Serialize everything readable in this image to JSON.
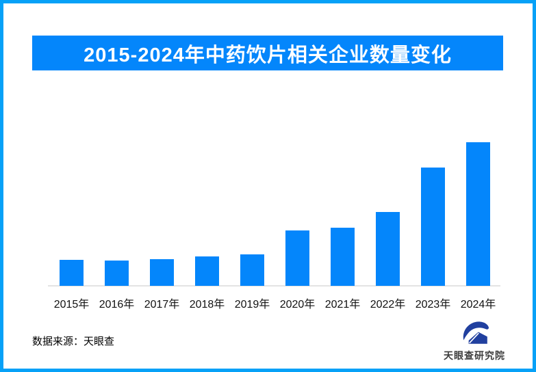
{
  "frame": {
    "border_color": "#07A1F7",
    "background_color": "#FFFFFF"
  },
  "header": {
    "title": "2015-2024年中药饮片相关企业数量变化",
    "banner_color": "#0486FB",
    "title_color": "#FFFFFF"
  },
  "chart_data": {
    "type": "bar",
    "title": "2015-2024年中药饮片相关企业数量变化",
    "categories": [
      "2015年",
      "2016年",
      "2017年",
      "2018年",
      "2019年",
      "2020年",
      "2021年",
      "2022年",
      "2023年",
      "2024年"
    ],
    "values": [
      38,
      37,
      39,
      43,
      46,
      81,
      85,
      108,
      173,
      210
    ],
    "xlabel": "",
    "ylabel": "",
    "ylim": [
      0,
      240
    ],
    "grid": false,
    "legend": false,
    "data_labels": false,
    "bar_color": "#0486FB",
    "axis_line_color": "#E3E3E3",
    "tick_label_color": "#111111"
  },
  "footer": {
    "source_label": "数据来源：天眼查",
    "logo": {
      "text": "天眼查研究院",
      "icon": "tianyancha-logo-icon",
      "icon_color": "#21409F",
      "text_color": "#3D3D3D"
    }
  }
}
